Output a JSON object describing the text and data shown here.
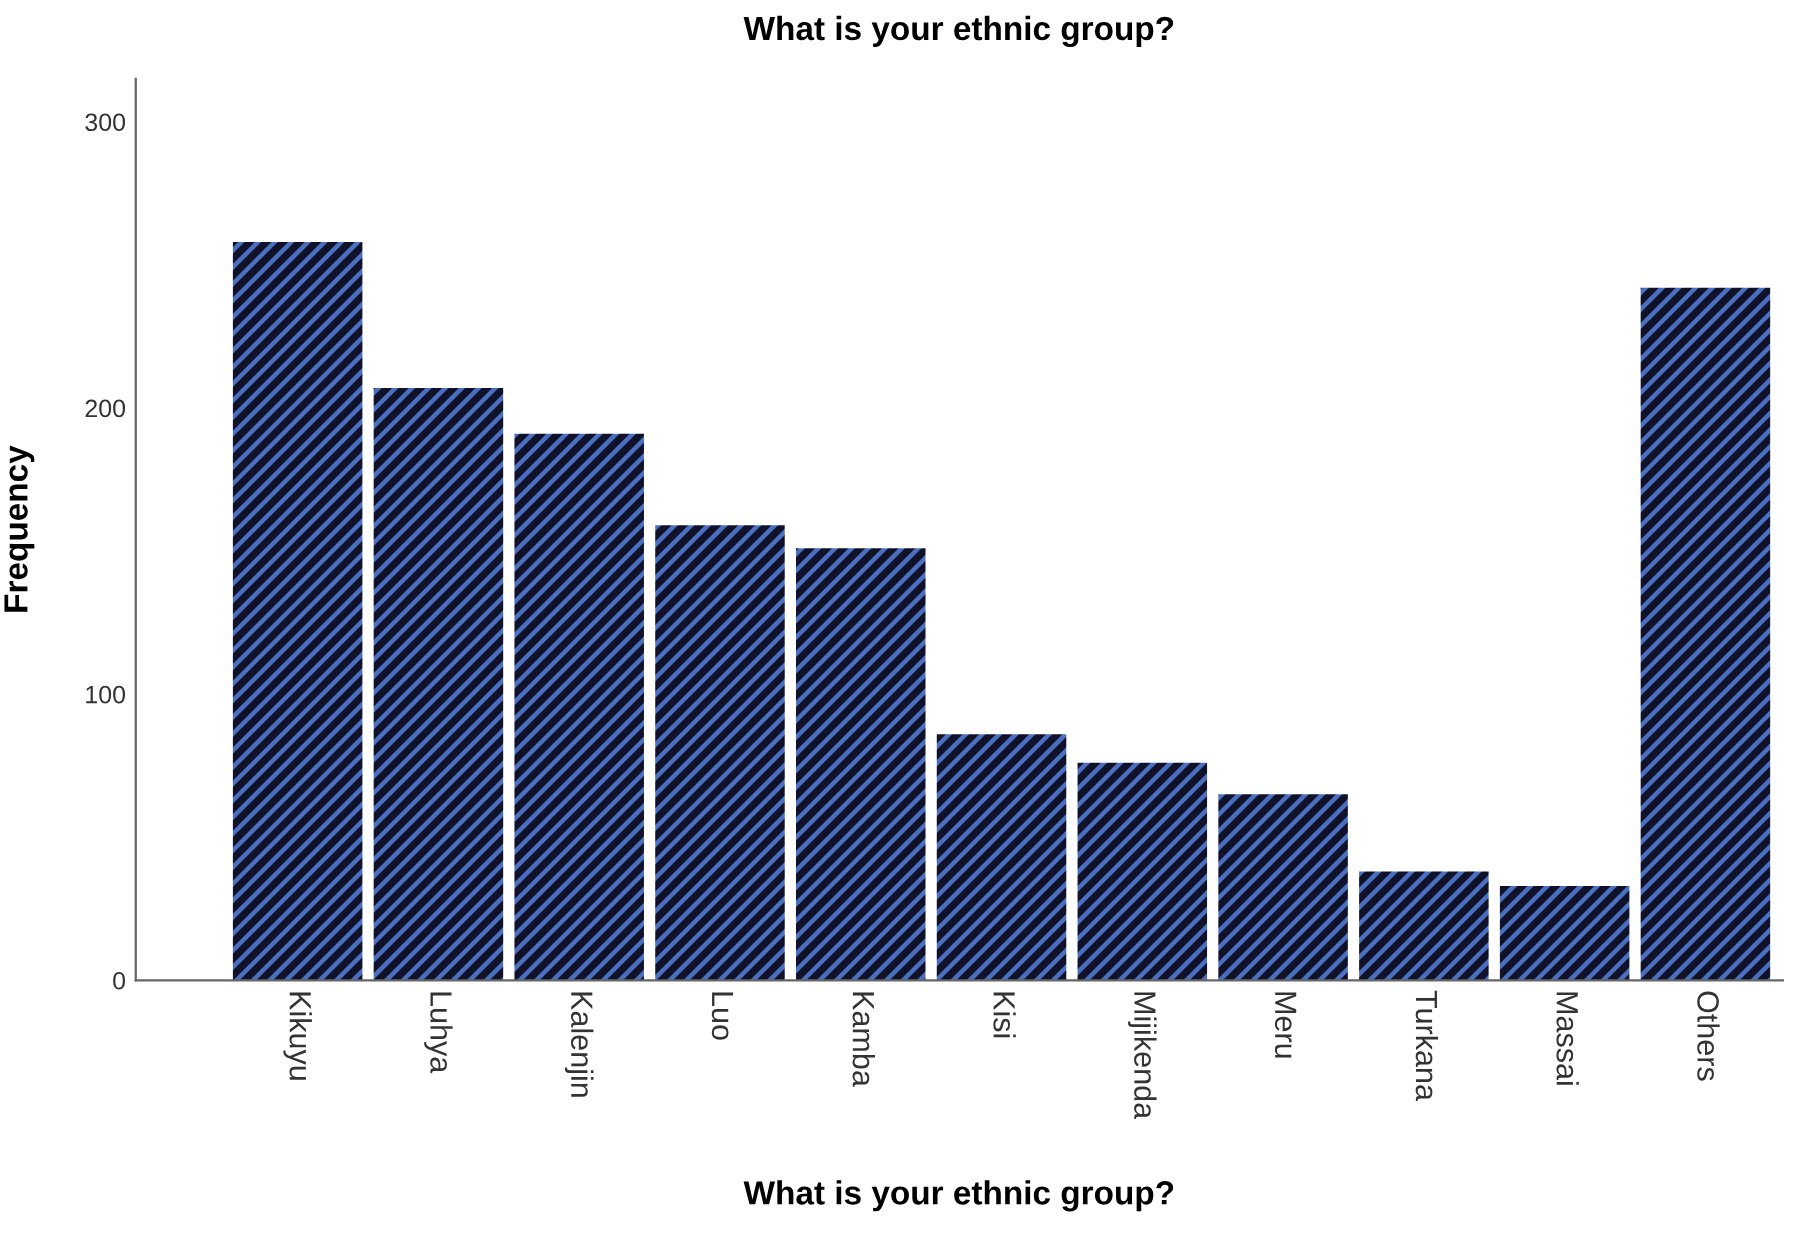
{
  "chart_data": {
    "type": "bar",
    "title": "What is your ethnic group?",
    "xlabel": "What is your ethnic group?",
    "ylabel": "Frequency",
    "categories": [
      "Kikuyu",
      "Luhya",
      "Kalenjin",
      "Luo",
      "Kamba",
      "Kisi",
      "Mijikenda",
      "Meru",
      "Turkana",
      "Massai",
      "Others"
    ],
    "values": [
      258,
      207,
      191,
      159,
      151,
      86,
      76,
      65,
      38,
      33,
      242
    ],
    "color": "#4a6fc0",
    "ylim": [
      0,
      315
    ],
    "yticks": [
      0,
      100,
      200,
      300
    ],
    "grid": false
  }
}
